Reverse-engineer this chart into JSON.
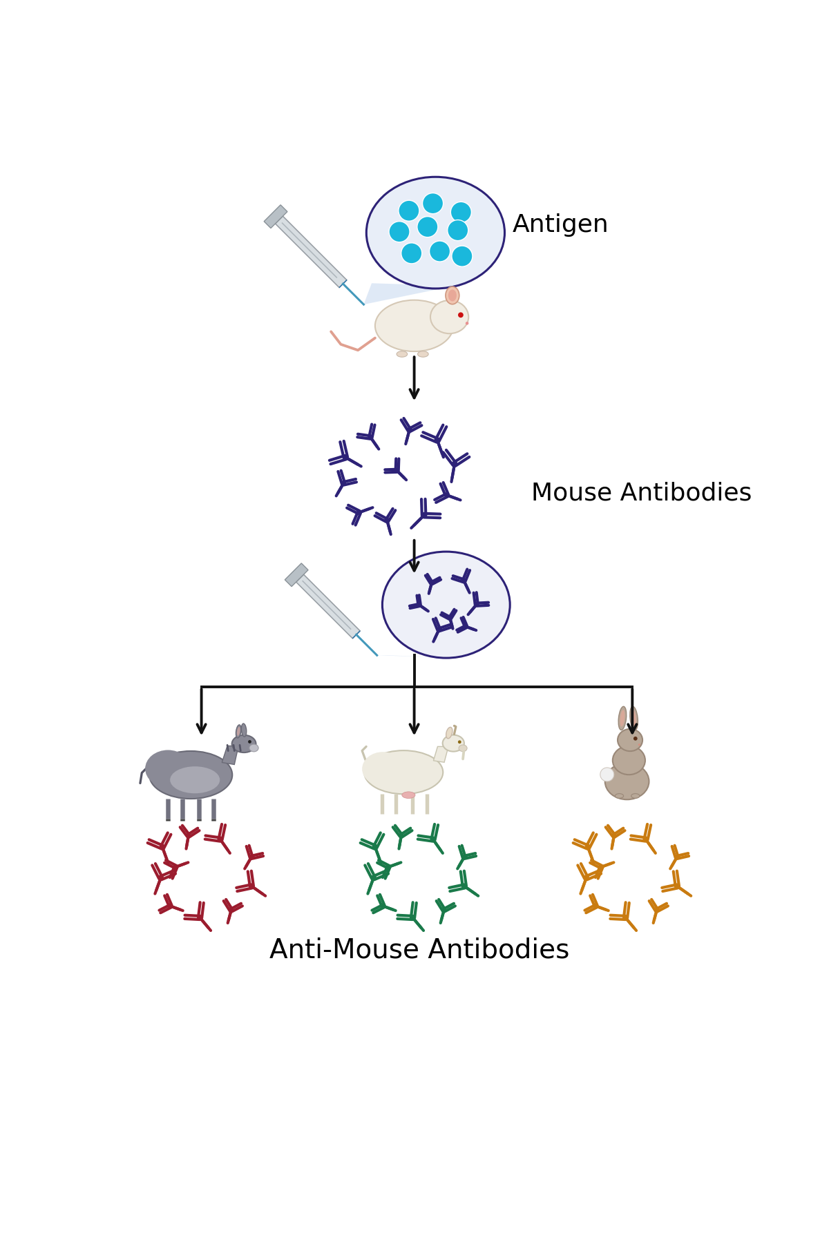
{
  "bg_color": "#ffffff",
  "antigen_label": "Antigen",
  "mouse_ab_label": "Mouse Antibodies",
  "anti_mouse_label": "Anti-Mouse Antibodies",
  "antigen_color": "#1ab8dc",
  "ab_primary_color": "#2d2277",
  "ab_donkey_color": "#9b1c2e",
  "ab_goat_color": "#1a7a4a",
  "ab_rabbit_color": "#c97b10",
  "circle_edge_color": "#2d2277",
  "circle_fill1": "#e8eef8",
  "circle_fill2": "#eef0f8",
  "arrow_color": "#111111",
  "label_fontsize": 26,
  "syringe_color": "#c8cdd0",
  "needle_color": "#4499bb"
}
